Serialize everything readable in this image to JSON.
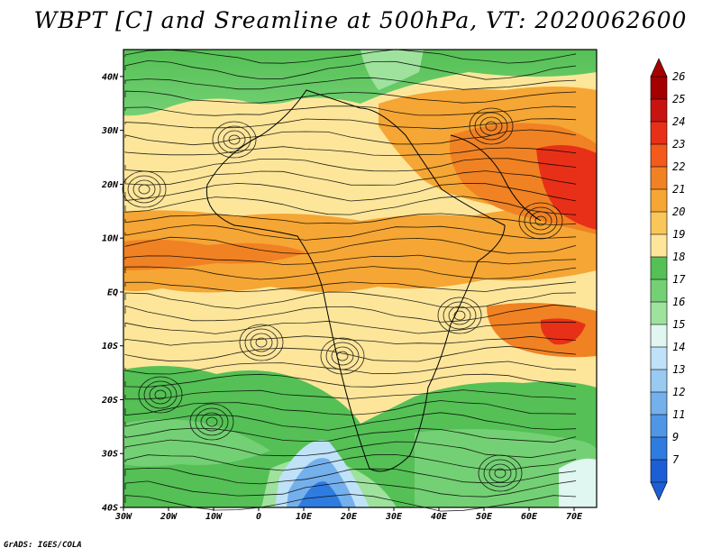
{
  "title": "WBPT [C] and Sreamline at 500hPa, VT: 2020062600",
  "credit": "GrADS: IGES/COLA",
  "map": {
    "lat_labels": [
      "40N",
      "30N",
      "20N",
      "10N",
      "EQ",
      "10S",
      "20S",
      "30S",
      "40S"
    ],
    "lat_values": [
      40,
      30,
      20,
      10,
      0,
      -10,
      -20,
      -30,
      -40
    ],
    "lon_labels": [
      "30W",
      "20W",
      "10W",
      "0",
      "10E",
      "20E",
      "30E",
      "40E",
      "50E",
      "60E",
      "70E"
    ],
    "lon_values": [
      -30,
      -20,
      -10,
      0,
      10,
      20,
      30,
      40,
      50,
      60,
      70
    ],
    "lon_range": [
      -30,
      75
    ],
    "lat_range": [
      -40,
      45
    ]
  },
  "colorbar": {
    "labels": [
      "26",
      "25",
      "24",
      "23",
      "22",
      "21",
      "20",
      "19",
      "18",
      "17",
      "16",
      "15",
      "14",
      "13",
      "12",
      "11",
      "9",
      "7"
    ],
    "colors": [
      "#a50000",
      "#c81410",
      "#e83018",
      "#f45a1c",
      "#f08224",
      "#f5a634",
      "#fac65a",
      "#fde69a",
      "#55c055",
      "#74d074",
      "#9ee29e",
      "#dff7f0",
      "#bfe2f8",
      "#98caf2",
      "#74b0ec",
      "#5096e6",
      "#2f7ce0",
      "#1c5fd4"
    ]
  }
}
